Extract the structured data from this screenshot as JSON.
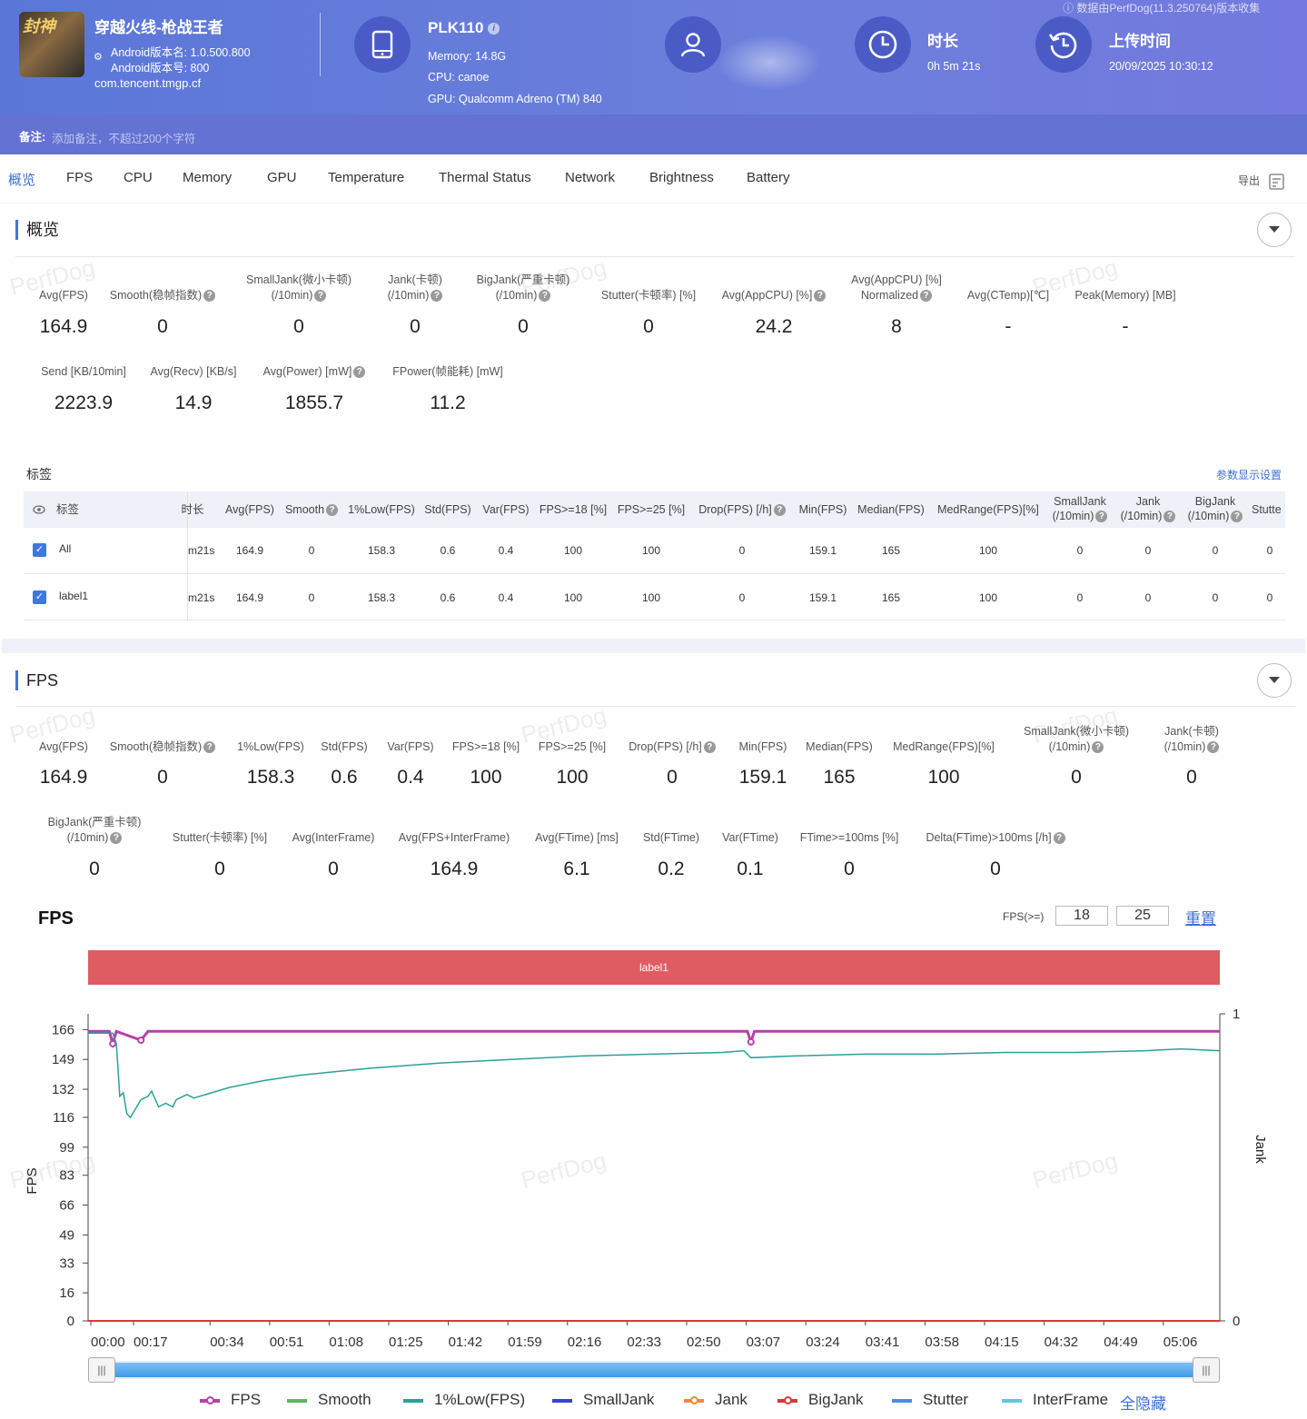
{
  "header": {
    "app_name": "穿越火线-枪战王者",
    "icon_text": "封神",
    "version_name": "Android版本名: 1.0.500.800",
    "version_code": "Android版本号: 800",
    "package": "com.tencent.tmgp.cf",
    "device": "PLK110",
    "memory": "Memory: 14.8G",
    "cpu": "CPU: canoe",
    "gpu": "GPU: Qualcomm Adreno (TM) 840",
    "duration_label": "时长",
    "duration_value": "0h 5m 21s",
    "upload_label": "上传时间",
    "upload_value": "20/09/2025 10:30:12",
    "collected_by": "数据由PerfDog(11.3.250764)版本收集",
    "note_label": "备注:",
    "note_placeholder": "添加备注，不超过200个字符"
  },
  "tabs": [
    "概览",
    "FPS",
    "CPU",
    "Memory",
    "GPU",
    "Temperature",
    "Thermal Status",
    "Network",
    "Brightness",
    "Battery"
  ],
  "export_label": "导出",
  "watermark": "PerfDog",
  "overview": {
    "title": "概览",
    "row1": [
      {
        "l1": "",
        "l2": "Avg(FPS)",
        "q": false,
        "v": "164.9"
      },
      {
        "l1": "",
        "l2": "Smooth(稳帧指数)",
        "q": true,
        "v": "0"
      },
      {
        "l1": "SmallJank(微小卡顿)",
        "l2": "(/10min)",
        "q": true,
        "v": "0"
      },
      {
        "l1": "Jank(卡顿)",
        "l2": "(/10min)",
        "q": true,
        "v": "0"
      },
      {
        "l1": "BigJank(严重卡顿)",
        "l2": "(/10min)",
        "q": true,
        "v": "0"
      },
      {
        "l1": "",
        "l2": "Stutter(卡顿率) [%]",
        "q": false,
        "v": "0"
      },
      {
        "l1": "",
        "l2": "Avg(AppCPU) [%]",
        "q": true,
        "v": "24.2"
      },
      {
        "l1": "Avg(AppCPU) [%]",
        "l2": "Normalized",
        "q": true,
        "v": "8"
      },
      {
        "l1": "",
        "l2": "Avg(CTemp)[℃]",
        "q": false,
        "v": "-"
      },
      {
        "l1": "",
        "l2": "Peak(Memory) [MB]",
        "q": false,
        "v": "-"
      }
    ],
    "row2": [
      {
        "l2": "Send [KB/10min]",
        "q": false,
        "v": "2223.9"
      },
      {
        "l2": "Avg(Recv) [KB/s]",
        "q": false,
        "v": "14.9"
      },
      {
        "l2": "Avg(Power) [mW]",
        "q": true,
        "v": "1855.7"
      },
      {
        "l2": "FPower(帧能耗) [mW]",
        "q": false,
        "v": "11.2"
      }
    ]
  },
  "labels_table": {
    "title": "标签",
    "settings_link": "参数显示设置",
    "first_col": "标签",
    "headers": [
      {
        "t1": "",
        "t2": "时长",
        "q": false
      },
      {
        "t1": "",
        "t2": "Avg(FPS)",
        "q": false
      },
      {
        "t1": "",
        "t2": "Smooth",
        "q": true
      },
      {
        "t1": "",
        "t2": "1%Low(FPS)",
        "q": false
      },
      {
        "t1": "",
        "t2": "Std(FPS)",
        "q": false
      },
      {
        "t1": "",
        "t2": "Var(FPS)",
        "q": false
      },
      {
        "t1": "",
        "t2": "FPS>=18 [%]",
        "q": false
      },
      {
        "t1": "",
        "t2": "FPS>=25 [%]",
        "q": false
      },
      {
        "t1": "",
        "t2": "Drop(FPS) [/h]",
        "q": true
      },
      {
        "t1": "",
        "t2": "Min(FPS)",
        "q": false
      },
      {
        "t1": "",
        "t2": "Median(FPS)",
        "q": false
      },
      {
        "t1": "",
        "t2": "MedRange(FPS)[%]",
        "q": false
      },
      {
        "t1": "SmallJank",
        "t2": "(/10min)",
        "q": true
      },
      {
        "t1": "Jank",
        "t2": "(/10min)",
        "q": true
      },
      {
        "t1": "BigJank",
        "t2": "(/10min)",
        "q": true
      },
      {
        "t1": "",
        "t2": "Stutte",
        "q": false
      }
    ],
    "rows": [
      {
        "name": "All",
        "cells": [
          "m21s",
          "164.9",
          "0",
          "158.3",
          "0.6",
          "0.4",
          "100",
          "100",
          "0",
          "159.1",
          "165",
          "100",
          "0",
          "0",
          "0",
          "0"
        ]
      },
      {
        "name": "label1",
        "cells": [
          "m21s",
          "164.9",
          "0",
          "158.3",
          "0.6",
          "0.4",
          "100",
          "100",
          "0",
          "159.1",
          "165",
          "100",
          "0",
          "0",
          "0",
          "0"
        ]
      }
    ]
  },
  "fps_section": {
    "title": "FPS",
    "row1": [
      {
        "l1": "",
        "l2": "Avg(FPS)",
        "q": false,
        "v": "164.9"
      },
      {
        "l1": "",
        "l2": "Smooth(稳帧指数)",
        "q": true,
        "v": "0"
      },
      {
        "l1": "",
        "l2": "1%Low(FPS)",
        "q": false,
        "v": "158.3"
      },
      {
        "l1": "",
        "l2": "Std(FPS)",
        "q": false,
        "v": "0.6"
      },
      {
        "l1": "",
        "l2": "Var(FPS)",
        "q": false,
        "v": "0.4"
      },
      {
        "l1": "",
        "l2": "FPS>=18 [%]",
        "q": false,
        "v": "100"
      },
      {
        "l1": "",
        "l2": "FPS>=25 [%]",
        "q": false,
        "v": "100"
      },
      {
        "l1": "",
        "l2": "Drop(FPS) [/h]",
        "q": true,
        "v": "0"
      },
      {
        "l1": "",
        "l2": "Min(FPS)",
        "q": false,
        "v": "159.1"
      },
      {
        "l1": "",
        "l2": "Median(FPS)",
        "q": false,
        "v": "165"
      },
      {
        "l1": "",
        "l2": "MedRange(FPS)[%]",
        "q": false,
        "v": "100"
      },
      {
        "l1": "SmallJank(微小卡顿)",
        "l2": "(/10min)",
        "q": true,
        "v": "0"
      },
      {
        "l1": "Jank(卡顿)",
        "l2": "(/10min)",
        "q": true,
        "v": "0"
      }
    ],
    "row2": [
      {
        "l1": "BigJank(严重卡顿)",
        "l2": "(/10min)",
        "q": true,
        "v": "0"
      },
      {
        "l1": "",
        "l2": "Stutter(卡顿率) [%]",
        "q": false,
        "v": "0"
      },
      {
        "l1": "",
        "l2": "Avg(InterFrame)",
        "q": false,
        "v": "0"
      },
      {
        "l1": "",
        "l2": "Avg(FPS+InterFrame)",
        "q": false,
        "v": "164.9"
      },
      {
        "l1": "",
        "l2": "Avg(FTime) [ms]",
        "q": false,
        "v": "6.1"
      },
      {
        "l1": "",
        "l2": "Std(FTime)",
        "q": false,
        "v": "0.2"
      },
      {
        "l1": "",
        "l2": "Var(FTime)",
        "q": false,
        "v": "0.1"
      },
      {
        "l1": "",
        "l2": "FTime>=100ms [%]",
        "q": false,
        "v": "0"
      },
      {
        "l1": "",
        "l2": "Delta(FTime)>100ms [/h]",
        "q": true,
        "v": "0"
      }
    ]
  },
  "chart_controls": {
    "title": "FPS",
    "fps_ge_label": "FPS(>=)",
    "threshold1": "18",
    "threshold2": "25",
    "reset_label": "重置",
    "label_band": "label1",
    "hide_all": "全隐藏"
  },
  "chart_data": {
    "type": "line",
    "title": "FPS",
    "ylabel": "FPS",
    "y2label": "Jank",
    "ylim": [
      0,
      175
    ],
    "y2lim": [
      0,
      1
    ],
    "yticks": [
      "0",
      "16",
      "33",
      "49",
      "66",
      "83",
      "99",
      "116",
      "132",
      "149",
      "166"
    ],
    "y2ticks": [
      "0",
      "1"
    ],
    "xtick_labels": [
      "00:00",
      "00:17",
      "00:34",
      "00:51",
      "01:08",
      "01:25",
      "01:42",
      "01:59",
      "02:16",
      "02:33",
      "02:50",
      "03:07",
      "03:24",
      "03:41",
      "03:58",
      "04:15",
      "04:32",
      "04:49",
      "05:06"
    ],
    "x_range_seconds": [
      0,
      321
    ],
    "legend": [
      {
        "name": "FPS",
        "color": "#b73fab",
        "marker": true
      },
      {
        "name": "Smooth",
        "color": "#5cb85c",
        "marker": false
      },
      {
        "name": "1%Low(FPS)",
        "color": "#2aa198",
        "marker": false
      },
      {
        "name": "SmallJank",
        "color": "#3b3fd8",
        "marker": false
      },
      {
        "name": "Jank",
        "color": "#f0883e",
        "marker": true
      },
      {
        "name": "BigJank",
        "color": "#d9383a",
        "marker": true
      },
      {
        "name": "Stutter",
        "color": "#4a8fe7",
        "marker": false
      },
      {
        "name": "InterFrame",
        "color": "#5bc8e0",
        "marker": false
      }
    ],
    "series": [
      {
        "name": "FPS",
        "x": [
          0,
          6,
          7,
          8,
          15,
          17,
          25,
          40,
          60,
          80,
          100,
          120,
          140,
          160,
          180,
          187,
          188,
          189,
          200,
          220,
          240,
          260,
          280,
          300,
          321
        ],
        "values": [
          165,
          165,
          158,
          165,
          160,
          165,
          165,
          165,
          165,
          165,
          165,
          165,
          165,
          165,
          165,
          165,
          159,
          165,
          165,
          165,
          165,
          165,
          165,
          165,
          165
        ]
      },
      {
        "name": "1%Low(FPS)",
        "x": [
          0,
          7,
          8,
          9,
          10,
          11,
          12,
          15,
          17,
          18,
          20,
          22,
          24,
          25,
          26,
          28,
          30,
          35,
          40,
          50,
          60,
          80,
          100,
          120,
          140,
          160,
          180,
          186,
          188,
          200,
          220,
          240,
          260,
          280,
          300,
          310,
          321
        ],
        "values": [
          164,
          164,
          158,
          128,
          130,
          118,
          116,
          126,
          128,
          131,
          122,
          124,
          122,
          126,
          127,
          129,
          127,
          130,
          133,
          137,
          140,
          144,
          147,
          149,
          151,
          152,
          153,
          154,
          150,
          151,
          152,
          152,
          153,
          153,
          154,
          155,
          154
        ]
      },
      {
        "name": "Jank",
        "x": [
          0,
          321
        ],
        "values": [
          0,
          0
        ]
      },
      {
        "name": "BigJank",
        "x": [
          0,
          321
        ],
        "values": [
          0,
          0
        ]
      }
    ]
  }
}
